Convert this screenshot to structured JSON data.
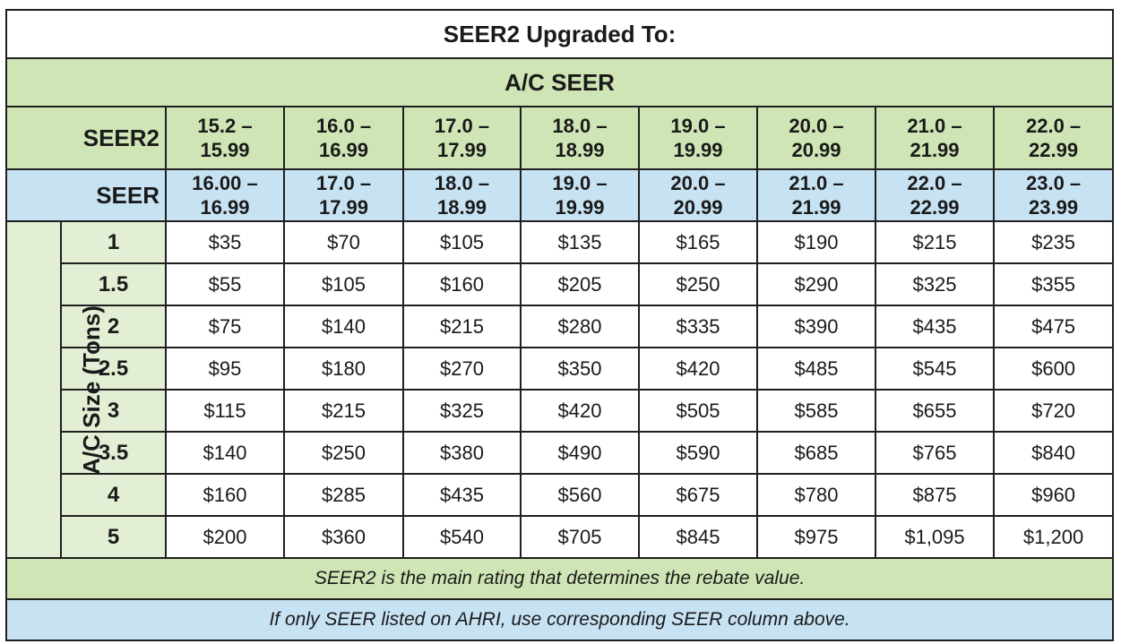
{
  "title": "SEER2 Upgraded To:",
  "ac_seer_heading": "A/C SEER",
  "seer2_label": "SEER2",
  "seer_label": "SEER",
  "side_label": "A/C Size (Tons)",
  "seer2_ranges": [
    [
      "15.2 –",
      "15.99"
    ],
    [
      "16.0 –",
      "16.99"
    ],
    [
      "17.0 –",
      "17.99"
    ],
    [
      "18.0 –",
      "18.99"
    ],
    [
      "19.0 –",
      "19.99"
    ],
    [
      "20.0 –",
      "20.99"
    ],
    [
      "21.0 –",
      "21.99"
    ],
    [
      "22.0 –",
      "22.99"
    ]
  ],
  "seer_ranges": [
    [
      "16.00 –",
      "16.99"
    ],
    [
      "17.0 –",
      "17.99"
    ],
    [
      "18.0 –",
      "18.99"
    ],
    [
      "19.0 –",
      "19.99"
    ],
    [
      "20.0 –",
      "20.99"
    ],
    [
      "21.0 –",
      "21.99"
    ],
    [
      "22.0 –",
      "22.99"
    ],
    [
      "23.0 –",
      "23.99"
    ]
  ],
  "rows": [
    {
      "size": "1",
      "values": [
        "$35",
        "$70",
        "$105",
        "$135",
        "$165",
        "$190",
        "$215",
        "$235"
      ]
    },
    {
      "size": "1.5",
      "values": [
        "$55",
        "$105",
        "$160",
        "$205",
        "$250",
        "$290",
        "$325",
        "$355"
      ]
    },
    {
      "size": "2",
      "values": [
        "$75",
        "$140",
        "$215",
        "$280",
        "$335",
        "$390",
        "$435",
        "$475"
      ]
    },
    {
      "size": "2.5",
      "values": [
        "$95",
        "$180",
        "$270",
        "$350",
        "$420",
        "$485",
        "$545",
        "$600"
      ]
    },
    {
      "size": "3",
      "values": [
        "$115",
        "$215",
        "$325",
        "$420",
        "$505",
        "$585",
        "$655",
        "$720"
      ]
    },
    {
      "size": "3.5",
      "values": [
        "$140",
        "$250",
        "$380",
        "$490",
        "$590",
        "$685",
        "$765",
        "$840"
      ]
    },
    {
      "size": "4",
      "values": [
        "$160",
        "$285",
        "$435",
        "$560",
        "$675",
        "$780",
        "$875",
        "$960"
      ]
    },
    {
      "size": "5",
      "values": [
        "$200",
        "$360",
        "$540",
        "$705",
        "$845",
        "$975",
        "$1,095",
        "$1,200"
      ]
    }
  ],
  "note_seer2": "SEER2 is the main rating that determines the rebate value.",
  "note_seer": "If only SEER listed on AHRI, use corresponding SEER column above.",
  "colors": {
    "green_header": "#cfe5b5",
    "blue_header": "#c7e3f3",
    "side_green": "#e2efd5",
    "border": "#1f1f1f"
  }
}
